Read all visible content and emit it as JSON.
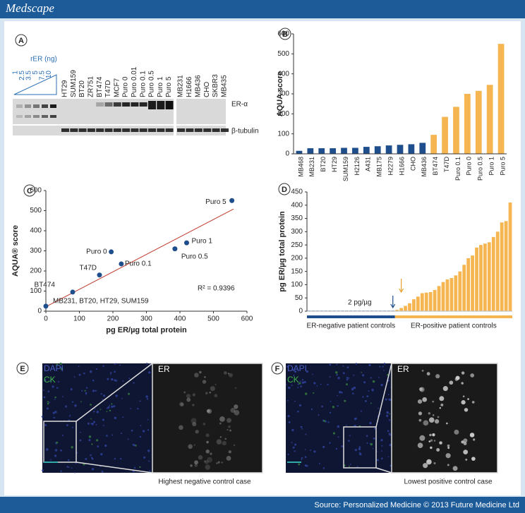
{
  "header": {
    "brand": "Medscape"
  },
  "panel_a": {
    "letter": "A",
    "rer_label": "rER (ng)",
    "rer_amounts": [
      1,
      2.5,
      3.5,
      5,
      7.5,
      10
    ],
    "lanes": [
      "HT29",
      "SUM159",
      "BT20",
      "ZR751",
      "BT474",
      "T47D",
      "MCF7",
      "Puro 0",
      "Puro 0.01",
      "Puro 0.1",
      "Puro 0.5",
      "Puro 1",
      "Puro 5",
      "MB231",
      "H1666",
      "MB436",
      "CHO",
      "SKBR3",
      "MB435"
    ],
    "bands": [
      "ER-α",
      "β-tubulin"
    ]
  },
  "chart_data": [
    {
      "type": "bar",
      "letter": "B",
      "ylabel": "AQUA score",
      "categories": [
        "MB468",
        "MB231",
        "BT20",
        "HT29",
        "SUM159",
        "H2126",
        "A431",
        "MB175",
        "H2279",
        "H1666",
        "CHO",
        "MB436",
        "BT474",
        "T47D",
        "Puro 0.1",
        "Puro 0",
        "Puro 0.5",
        "Puro 1",
        "Puro 5"
      ],
      "values": [
        15,
        28,
        28,
        28,
        30,
        30,
        35,
        38,
        42,
        45,
        48,
        55,
        95,
        185,
        235,
        300,
        315,
        345,
        550
      ],
      "colors": [
        "#1f4e8c",
        "#1f4e8c",
        "#1f4e8c",
        "#1f4e8c",
        "#1f4e8c",
        "#1f4e8c",
        "#1f4e8c",
        "#1f4e8c",
        "#1f4e8c",
        "#1f4e8c",
        "#1f4e8c",
        "#1f4e8c",
        "#f5b550",
        "#f5b550",
        "#f5b550",
        "#f5b550",
        "#f5b550",
        "#f5b550",
        "#f5b550"
      ],
      "ylim": [
        0,
        600
      ],
      "yticks": [
        0,
        100,
        200,
        300,
        400,
        500,
        600
      ]
    },
    {
      "type": "scatter",
      "letter": "C",
      "xlabel": "pg ER/µg total protein",
      "ylabel": "AQUA® score",
      "x": [
        0,
        80,
        160,
        225,
        195,
        385,
        420,
        555
      ],
      "y": [
        25,
        95,
        180,
        235,
        295,
        310,
        340,
        550
      ],
      "point_labels": [
        "MB231, BT20, HT29, SUM159",
        "BT474",
        "T47D",
        "Puro 0.1",
        "Puro 0",
        "Puro 0.5",
        "Puro 1",
        "Puro 5"
      ],
      "color": "#1f4e8c",
      "fit_line": {
        "x": [
          0,
          560
        ],
        "y": [
          22,
          508
        ],
        "color": "#c0392b"
      },
      "annotation": "R² = 0.9396",
      "xlim": [
        0,
        600
      ],
      "ylim": [
        0,
        600
      ],
      "xticks": [
        0,
        100,
        200,
        300,
        400,
        500,
        600
      ],
      "yticks": [
        0,
        100,
        200,
        300,
        400,
        500,
        600
      ]
    },
    {
      "type": "bar",
      "letter": "D",
      "ylabel": "pg ER/µg total protein",
      "values": [
        2,
        2,
        2,
        2,
        2,
        2,
        2,
        2,
        2,
        2,
        2,
        2,
        2,
        2,
        2,
        2,
        2,
        2,
        2,
        2,
        2,
        5,
        12,
        20,
        30,
        45,
        55,
        68,
        70,
        72,
        80,
        95,
        110,
        120,
        125,
        135,
        150,
        175,
        200,
        210,
        240,
        250,
        255,
        260,
        280,
        300,
        335,
        340,
        410
      ],
      "colors": [
        "#1f4e8c",
        "#1f4e8c",
        "#1f4e8c",
        "#1f4e8c",
        "#1f4e8c",
        "#1f4e8c",
        "#1f4e8c",
        "#1f4e8c",
        "#1f4e8c",
        "#1f4e8c",
        "#1f4e8c",
        "#1f4e8c",
        "#1f4e8c",
        "#1f4e8c",
        "#1f4e8c",
        "#1f4e8c",
        "#1f4e8c",
        "#1f4e8c",
        "#1f4e8c",
        "#1f4e8c",
        "#1f4e8c",
        "#f5b550",
        "#f5b550",
        "#f5b550",
        "#f5b550",
        "#f5b550",
        "#f5b550",
        "#f5b550",
        "#f5b550",
        "#f5b550",
        "#f5b550",
        "#f5b550",
        "#f5b550",
        "#f5b550",
        "#f5b550",
        "#f5b550",
        "#f5b550",
        "#f5b550",
        "#f5b550",
        "#f5b550",
        "#f5b550",
        "#f5b550",
        "#f5b550",
        "#f5b550",
        "#f5b550",
        "#f5b550",
        "#f5b550",
        "#f5b550",
        "#f5b550"
      ],
      "annotation": "2 pg/µg",
      "groups": [
        {
          "name": "ER-negative patient controls",
          "color": "#1f4e8c"
        },
        {
          "name": "ER-positive patient controls",
          "color": "#f5b550"
        }
      ],
      "ylim": [
        0,
        450
      ],
      "yticks": [
        0,
        50,
        100,
        150,
        200,
        250,
        300,
        350,
        400,
        450
      ]
    }
  ],
  "panel_e": {
    "letter": "E",
    "stain_1": "DAPI",
    "stain_2": "CK",
    "zoom_label": "ER",
    "caption": "Highest negative control case"
  },
  "panel_f": {
    "letter": "F",
    "stain_1": "DAPI",
    "stain_2": "CK",
    "zoom_label": "ER",
    "caption": "Lowest positive control case"
  },
  "footer": {
    "source": "Source: Personalized Medicine © 2013 Future Medicine Ltd"
  }
}
